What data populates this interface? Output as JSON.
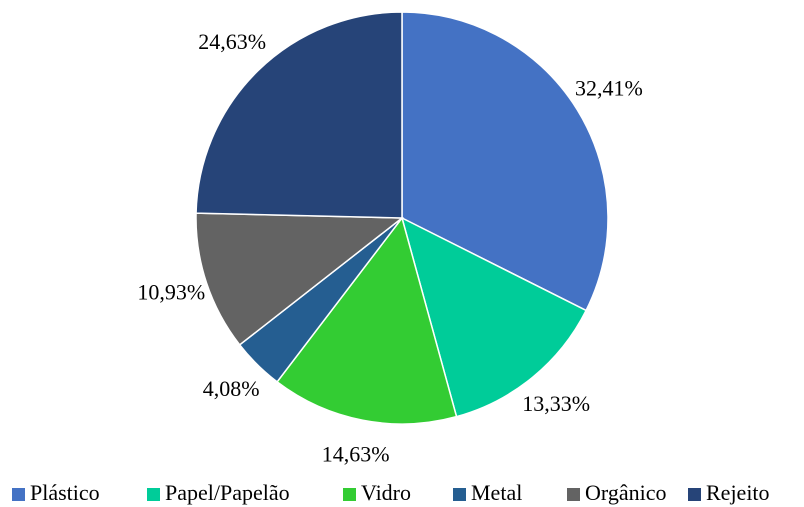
{
  "chart_data": {
    "type": "pie",
    "categories": [
      "Plástico",
      "Papel/Papelão",
      "Vidro",
      "Metal",
      "Orgânico",
      "Rejeito"
    ],
    "values": [
      32.41,
      13.33,
      14.63,
      4.08,
      10.93,
      24.63
    ],
    "value_labels": [
      "32,41%",
      "13,33%",
      "14,63%",
      "4,08%",
      "10,93%",
      "24,63%"
    ],
    "colors": [
      "#4472c4",
      "#00cc99",
      "#33cc33",
      "#255e91",
      "#636363",
      "#264478"
    ],
    "legend": "bottom"
  }
}
